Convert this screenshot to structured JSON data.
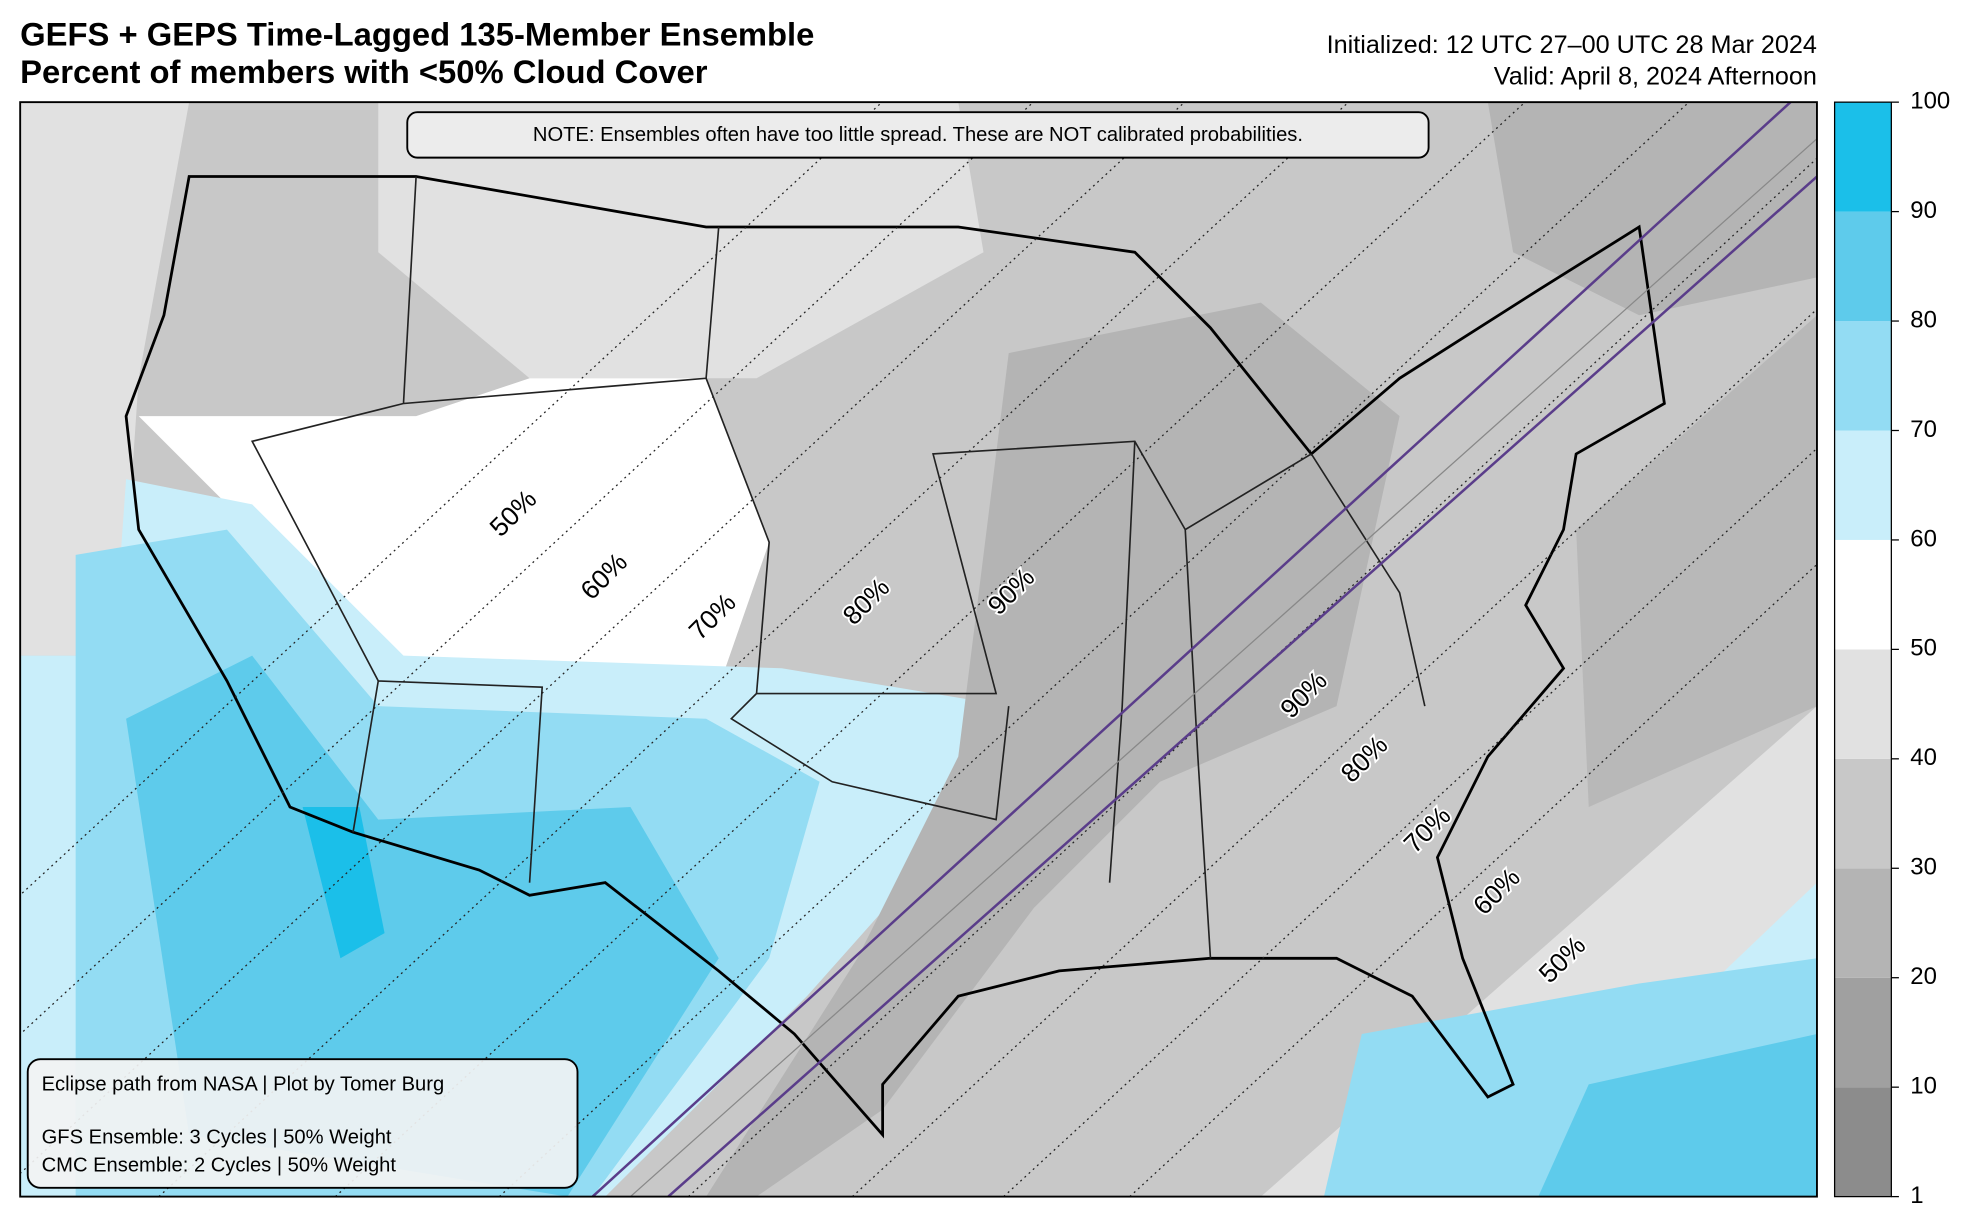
{
  "header": {
    "title": "GEFS + GEPS Time-Lagged 135-Member Ensemble",
    "subtitle": "Percent of members with <50% Cloud Cover",
    "initialized": "Initialized: 12 UTC 27–00 UTC 28 Mar 2024",
    "valid": "Valid: April 8, 2024 Afternoon"
  },
  "note": "NOTE: Ensembles often have too little spread. These are NOT calibrated probabilities.",
  "footer": {
    "credit": "Eclipse path from NASA | Plot by Tomer Burg",
    "lines": [
      "GFS Ensemble: 3 Cycles | 50% Weight",
      "CMC Ensemble: 2 Cycles | 50% Weight"
    ]
  },
  "obscuration_labels": [
    "50%",
    "60%",
    "70%",
    "80%",
    "90%",
    "90%",
    "80%",
    "70%",
    "60%",
    "50%"
  ],
  "colorbar": {
    "levels": [
      1,
      10,
      20,
      30,
      40,
      50,
      60,
      70,
      80,
      90,
      100
    ],
    "colors": [
      "#8c8c8c",
      "#a0a0a0",
      "#b4b4b4",
      "#c8c8c8",
      "#e1e1e1",
      "#ffffff",
      "#c9eefa",
      "#93dcf3",
      "#5ecbeb",
      "#1bbfe9"
    ]
  }
}
